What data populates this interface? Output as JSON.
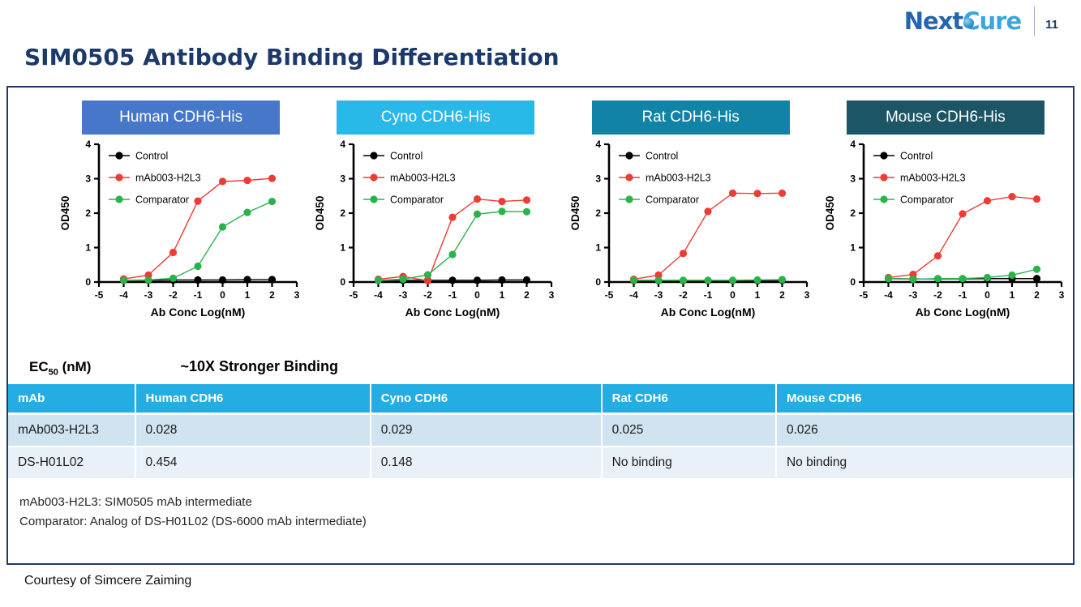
{
  "header": {
    "logo_next": "Next",
    "logo_cure": "Cure",
    "page_number": "11"
  },
  "slide_title": "SIM0505 Antibody Binding Differentiation",
  "colors": {
    "title_navy": "#1b3a6b",
    "box_border": "#1f3864",
    "table_header_bg": "#24ade2",
    "table_row1_bg": "#cfe3f1",
    "table_row2_bg": "#e9f1f8",
    "control_black": "#000000",
    "mab_red": "#ee3b33",
    "comparator_green": "#2bb34b"
  },
  "chart_data": [
    {
      "type": "line",
      "title": "Human CDH6-His",
      "title_bg": "#4677c8",
      "x": [
        -4,
        -3,
        -2,
        -1,
        0,
        1,
        2
      ],
      "xlabel": "Ab Conc Log(nM)",
      "ylabel": "OD450",
      "xlim": [
        -5,
        3
      ],
      "ylim": [
        0,
        4
      ],
      "x_ticks": [
        -5,
        -4,
        -3,
        -2,
        -1,
        0,
        1,
        2,
        3
      ],
      "y_ticks": [
        0,
        1,
        2,
        3,
        4
      ],
      "legend_position": "top-left",
      "series": [
        {
          "name": "Control",
          "color": "#000000",
          "values": [
            0.05,
            0.05,
            0.06,
            0.06,
            0.06,
            0.07,
            0.07
          ]
        },
        {
          "name": "mAb003-H2L3",
          "color": "#ee3b33",
          "values": [
            0.09,
            0.2,
            0.86,
            2.35,
            2.92,
            2.95,
            3.01
          ]
        },
        {
          "name": "Comparator",
          "color": "#2bb34b",
          "values": [
            0.05,
            0.06,
            0.11,
            0.46,
            1.6,
            2.02,
            2.34
          ]
        }
      ]
    },
    {
      "type": "line",
      "title": "Cyno CDH6-His",
      "title_bg": "#29b9e8",
      "x": [
        -4,
        -3,
        -2,
        -1,
        0,
        1,
        2
      ],
      "xlabel": "Ab Conc Log(nM)",
      "ylabel": "OD450",
      "xlim": [
        -5,
        3
      ],
      "ylim": [
        0,
        4
      ],
      "x_ticks": [
        -5,
        -4,
        -3,
        -2,
        -1,
        0,
        1,
        2,
        3
      ],
      "y_ticks": [
        0,
        1,
        2,
        3,
        4
      ],
      "legend_position": "top-left",
      "series": [
        {
          "name": "Control",
          "color": "#000000",
          "values": [
            0.05,
            0.05,
            0.05,
            0.05,
            0.05,
            0.06,
            0.06
          ]
        },
        {
          "name": "mAb003-H2L3",
          "color": "#ee3b33",
          "values": [
            0.08,
            0.16,
            0.04,
            1.88,
            2.41,
            2.34,
            2.38
          ]
        },
        {
          "name": "Comparator",
          "color": "#2bb34b",
          "values": [
            0.05,
            0.08,
            0.21,
            0.8,
            1.97,
            2.05,
            2.04
          ]
        }
      ]
    },
    {
      "type": "line",
      "title": "Rat CDH6-His",
      "title_bg": "#1083a6",
      "x": [
        -4,
        -3,
        -2,
        -1,
        0,
        1,
        2
      ],
      "xlabel": "Ab Conc Log(nM)",
      "ylabel": "OD450",
      "xlim": [
        -5,
        3
      ],
      "ylim": [
        0,
        4
      ],
      "x_ticks": [
        -5,
        -4,
        -3,
        -2,
        -1,
        0,
        1,
        2,
        3
      ],
      "y_ticks": [
        0,
        1,
        2,
        3,
        4
      ],
      "legend_position": "top-left",
      "series": [
        {
          "name": "Control",
          "color": "#000000",
          "values": [
            0.04,
            0.04,
            0.04,
            0.04,
            0.04,
            0.04,
            0.05
          ]
        },
        {
          "name": "mAb003-H2L3",
          "color": "#ee3b33",
          "values": [
            0.08,
            0.2,
            0.83,
            2.05,
            2.58,
            2.57,
            2.58
          ]
        },
        {
          "name": "Comparator",
          "color": "#2bb34b",
          "values": [
            0.05,
            0.05,
            0.05,
            0.05,
            0.05,
            0.06,
            0.07
          ]
        }
      ]
    },
    {
      "type": "line",
      "title": "Mouse CDH6-His",
      "title_bg": "#1b5566",
      "x": [
        -4,
        -3,
        -2,
        -1,
        0,
        1,
        2
      ],
      "xlabel": "Ab Conc Log(nM)",
      "ylabel": "OD450",
      "xlim": [
        -5,
        3
      ],
      "ylim": [
        0,
        4
      ],
      "x_ticks": [
        -5,
        -4,
        -3,
        -2,
        -1,
        0,
        1,
        2,
        3
      ],
      "y_ticks": [
        0,
        1,
        2,
        3,
        4
      ],
      "legend_position": "top-left",
      "series": [
        {
          "name": "Control",
          "color": "#000000",
          "values": [
            0.1,
            0.09,
            0.09,
            0.09,
            0.1,
            0.1,
            0.1
          ]
        },
        {
          "name": "mAb003-H2L3",
          "color": "#ee3b33",
          "values": [
            0.13,
            0.22,
            0.76,
            1.98,
            2.36,
            2.48,
            2.41
          ]
        },
        {
          "name": "Comparator",
          "color": "#2bb34b",
          "values": [
            0.1,
            0.08,
            0.1,
            0.1,
            0.13,
            0.2,
            0.37
          ]
        }
      ]
    }
  ],
  "ec50_section": {
    "heading_base": "EC",
    "heading_sub": "50",
    "heading_unit": " (nM)",
    "annotation": "~10X Stronger Binding"
  },
  "ec50_table": {
    "columns": [
      "mAb",
      "Human CDH6",
      "Cyno CDH6",
      "Rat CDH6",
      "Mouse CDH6"
    ],
    "column_widths_pct": [
      12,
      22.1,
      21.7,
      16.4,
      27.8
    ],
    "rows": [
      [
        "mAb003-H2L3",
        "0.028",
        "0.029",
        "0.025",
        "0.026"
      ],
      [
        "DS-H01L02",
        "0.454",
        "0.148",
        "No binding",
        "No binding"
      ]
    ]
  },
  "notes": [
    "mAb003-H2L3: SIM0505 mAb intermediate",
    "Comparator: Analog of DS-H01L02 (DS-6000 mAb intermediate)"
  ],
  "courtesy": "Courtesy of Simcere Zaiming"
}
